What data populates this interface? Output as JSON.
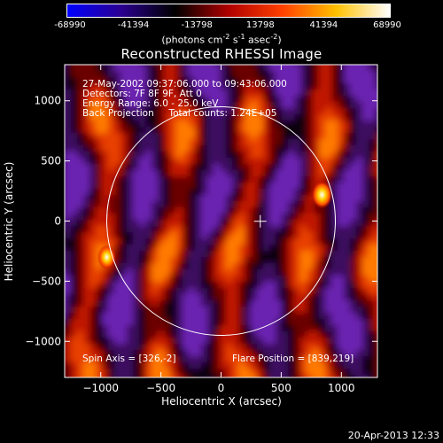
{
  "colorbar": {
    "ticks": [
      "-68990",
      "-41394",
      "-13798",
      "13798",
      "41394",
      "68990"
    ],
    "units_text": "(photons cm",
    "units_sup1": "-2",
    "units_mid": " s",
    "units_sup2": "-1",
    "units_mid2": " asec",
    "units_sup3": "-2",
    "units_end": ")",
    "colors": [
      "#0000ff",
      "#2a0090",
      "#000000",
      "#b00000",
      "#ff4000",
      "#ffc000",
      "#ffffff"
    ]
  },
  "title": "Reconstructed RHESSI Image",
  "info": {
    "line1": "27-May-2002 09:37:06.000 to 09:43:06.000",
    "line2": "Detectors: 7F 8F 9F, Att 0",
    "line3": "Energy Range: 6.0 - 25.0 keV",
    "line4": "Back Projection     Total counts: 1.24E+05",
    "spin_axis": "Spin Axis = [326,-2]",
    "flare_position": "Flare Position = [839,219]"
  },
  "footer": {
    "timestamp": "20-Apr-2013 12:33"
  },
  "chart_data": {
    "type": "heatmap",
    "title": "Reconstructed RHESSI Image",
    "xlabel": "Heliocentric X (arcsec)",
    "ylabel": "Heliocentric Y (arcsec)",
    "xlim": [
      -1300,
      1300
    ],
    "ylim": [
      -1300,
      1300
    ],
    "x_ticks": [
      -1000,
      -500,
      0,
      500,
      1000
    ],
    "y_ticks": [
      -1000,
      -500,
      0,
      500,
      1000
    ],
    "x_tick_labels": [
      "−1000",
      "−500",
      "0",
      "500",
      "1000"
    ],
    "y_tick_labels": [
      "−1000",
      "−500",
      "0",
      "500",
      "1000"
    ],
    "color_range": [
      -68990,
      68990
    ],
    "solar_limb": {
      "center": [
        0,
        0
      ],
      "radius_arcsec": 950
    },
    "spin_axis_marker": [
      326,
      -2
    ],
    "flare_position": [
      839,
      219
    ],
    "bright_sources": [
      {
        "x": 839,
        "y": 219,
        "level": 1.0
      },
      {
        "x": -950,
        "y": -300,
        "level": 0.85
      }
    ],
    "grid": false
  }
}
